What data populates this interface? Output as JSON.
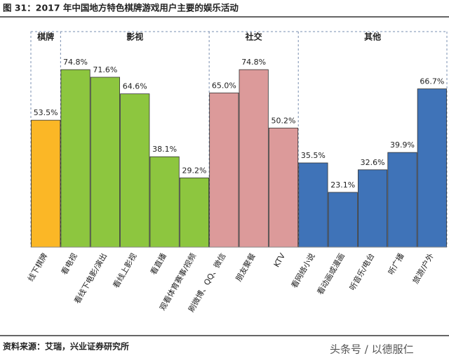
{
  "chart_data": {
    "type": "bar",
    "title": "图 31：2017 年中国地方特色棋牌游戏用户主要的娱乐活动",
    "categories": [
      "线下棋牌",
      "看电视",
      "看线下电影/演出",
      "看线上影视",
      "看直播",
      "观看体育赛事/视频",
      "刷微博、QQ、微信",
      "朋友聚餐",
      "KTV",
      "看网络小说",
      "看动画或漫画",
      "听音乐/电台",
      "听广播",
      "旅游/户外"
    ],
    "series": [
      {
        "name": "棋牌",
        "color": "#FBB726",
        "values": [
          53.5,
          null,
          null,
          null,
          null,
          null,
          null,
          null,
          null,
          null,
          null,
          null,
          null,
          null
        ],
        "value_labels": [
          "53.5%",
          null,
          null,
          null,
          null,
          null,
          null,
          null,
          null,
          null,
          null,
          null,
          null,
          null
        ]
      },
      {
        "name": "影视",
        "color": "#8DC63F",
        "values": [
          null,
          74.8,
          71.6,
          64.6,
          38.1,
          29.2,
          null,
          null,
          null,
          null,
          null,
          null,
          null,
          null
        ],
        "value_labels": [
          null,
          "74.8%",
          "71.6%",
          "64.6%",
          "38.1%",
          "29.2%",
          null,
          null,
          null,
          null,
          null,
          null,
          null,
          null
        ]
      },
      {
        "name": "社交",
        "color": "#DC9A9A",
        "values": [
          null,
          null,
          null,
          null,
          null,
          null,
          65.0,
          74.8,
          50.2,
          null,
          null,
          null,
          null,
          null
        ],
        "value_labels": [
          null,
          null,
          null,
          null,
          null,
          null,
          "65.0%",
          "74.8%",
          "50.2%",
          null,
          null,
          null,
          null,
          null
        ]
      },
      {
        "name": "其他",
        "color": "#3F73B8",
        "values": [
          null,
          null,
          null,
          null,
          null,
          null,
          null,
          null,
          null,
          35.5,
          23.1,
          32.6,
          39.9,
          66.7
        ],
        "value_labels": [
          null,
          null,
          null,
          null,
          null,
          null,
          null,
          null,
          null,
          "35.5%",
          "23.1%",
          "32.6%",
          "39.9%",
          "66.7%"
        ]
      }
    ],
    "source": "资料来源：艾瑞，兴业证券研究所",
    "watermark": "头条号 / 以德服仁"
  }
}
